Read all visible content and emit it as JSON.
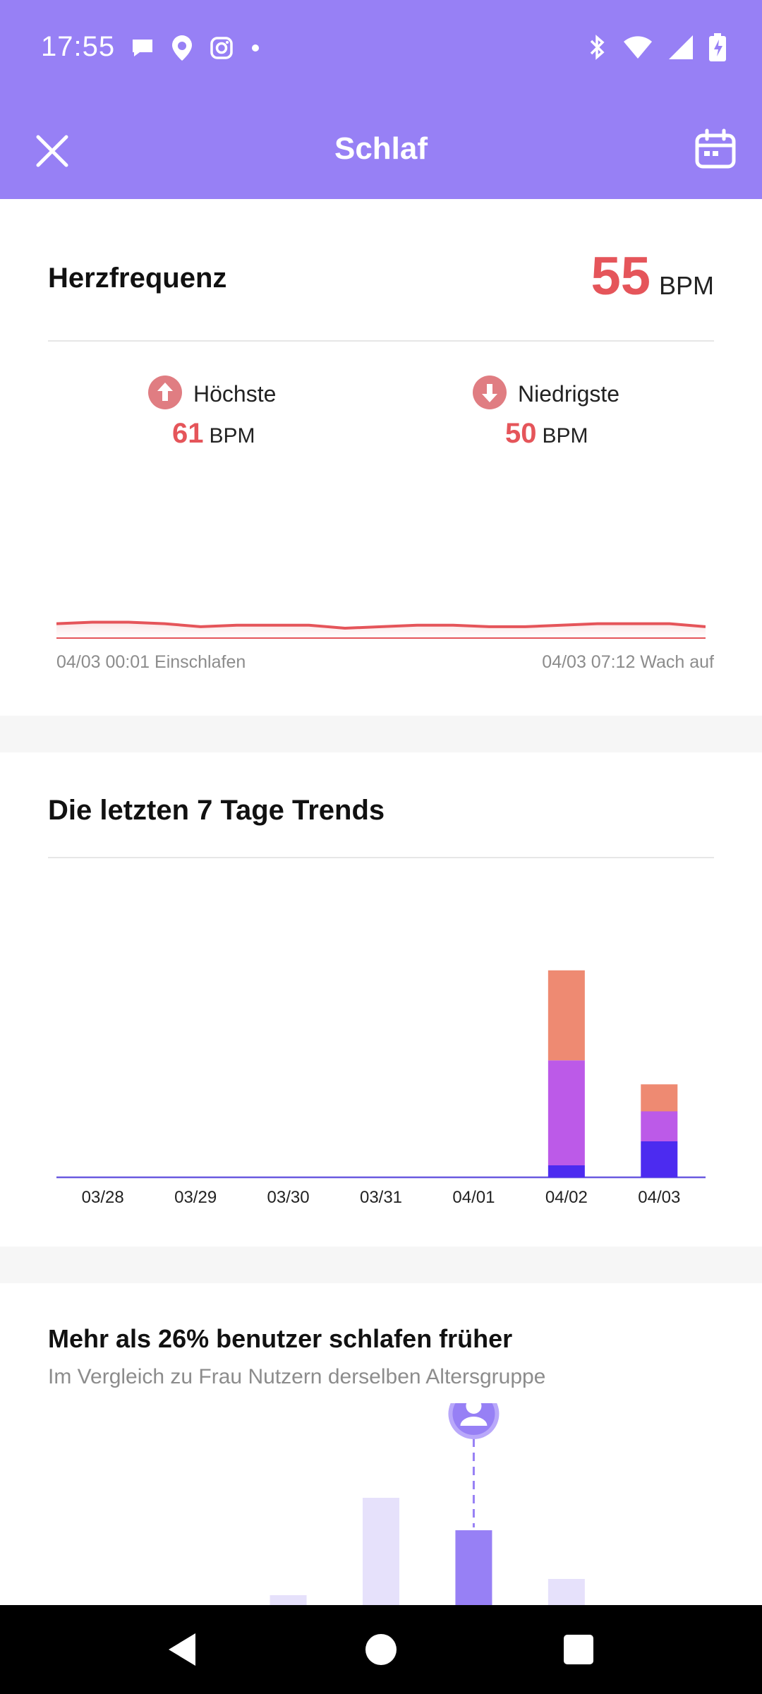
{
  "status_bar": {
    "time": "17:55",
    "notification_icons": [
      "chat-bubble-icon",
      "paw-location-icon",
      "instagram-icon",
      "dot-icon"
    ],
    "system_icons": [
      "bluetooth-icon",
      "wifi-icon",
      "cell-signal-icon",
      "battery-charging-icon"
    ]
  },
  "header": {
    "title": "Schlaf",
    "left_icon": "close-icon",
    "right_icon": "calendar-icon",
    "bg_color": "#9780F5"
  },
  "heart_rate": {
    "title": "Herzfrequenz",
    "value": "55",
    "unit": "BPM",
    "highest": {
      "label": "Höchste",
      "value": "61",
      "unit": "BPM"
    },
    "lowest": {
      "label": "Niedrigste",
      "value": "50",
      "unit": "BPM"
    },
    "start_time": "04/03 00:01 Einschlafen",
    "end_time": "04/03 07:12 Wach auf",
    "accent_color": "#E5555A",
    "chart_data": {
      "type": "line",
      "series": [
        {
          "values": [
            58,
            59,
            59,
            58,
            56,
            57,
            57,
            57,
            55,
            56,
            57,
            57,
            56,
            56,
            57,
            58,
            58,
            58,
            56
          ]
        }
      ]
    }
  },
  "trends": {
    "title": "Die letzten 7 Tage Trends",
    "chart_data": {
      "type": "bar",
      "stacked": true,
      "categories": [
        "03/28",
        "03/29",
        "03/30",
        "03/31",
        "04/01",
        "04/02",
        "04/03"
      ],
      "series": [
        {
          "color": "#4C2BF0",
          "values": [
            0,
            0,
            0,
            0,
            0,
            0.4,
            1.2
          ]
        },
        {
          "color": "#BC5AE8",
          "values": [
            0,
            0,
            0,
            0,
            0,
            3.5,
            1.0
          ]
        },
        {
          "color": "#EE8A72",
          "values": [
            0,
            0,
            0,
            0,
            0,
            3.0,
            0.9
          ]
        }
      ]
    }
  },
  "comparison": {
    "title": "Mehr als 26% benutzer schlafen früher",
    "subtitle": "Im Vergleich zu Frau Nutzern derselben Altersgruppe",
    "chart_data": {
      "type": "bar",
      "values": [
        0,
        0,
        2,
        8,
        6,
        3,
        0.6
      ],
      "highlight_index": 4,
      "marker": "user-avatar-icon"
    }
  },
  "nav": {
    "icons": [
      "back-icon",
      "home-icon",
      "recents-icon"
    ]
  }
}
